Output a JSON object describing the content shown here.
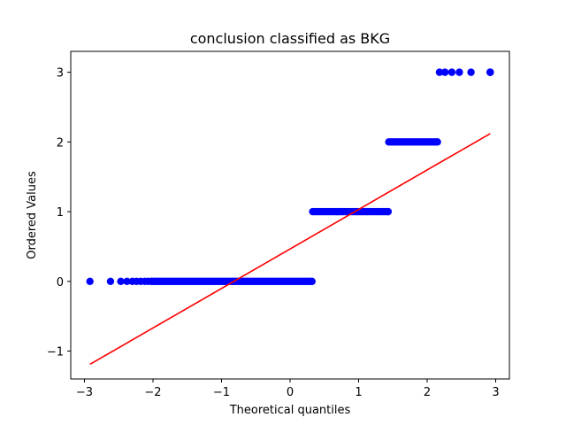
{
  "chart_data": {
    "type": "scatter",
    "title": "conclusion classified as BKG",
    "xlabel": "Theoretical quantiles",
    "ylabel": "Ordered Values",
    "xlim": [
      -3.2,
      3.2
    ],
    "ylim": [
      -1.4,
      3.3
    ],
    "xticks": [
      -3,
      -2,
      -1,
      0,
      1,
      2,
      3
    ],
    "yticks": [
      -1,
      0,
      1,
      2,
      3
    ],
    "grid": false,
    "point_color": "#0000ff",
    "line_color": "#ff0000",
    "groups": [
      {
        "y": 0,
        "x_start": -2.92,
        "x_end": 0.32,
        "sparse_x": [
          -2.92,
          -2.62,
          -2.47,
          -2.38,
          -2.3,
          -2.24,
          -2.18,
          -2.12,
          -2.07,
          -2.02
        ]
      },
      {
        "y": 1,
        "x_start": 0.33,
        "x_end": 1.43,
        "sparse_x": []
      },
      {
        "y": 2,
        "x_start": 1.44,
        "x_end": 2.15,
        "sparse_x": []
      },
      {
        "y": 3,
        "x_start": 2.18,
        "x_end": 2.92,
        "sparse_x": [
          2.18,
          2.26,
          2.36,
          2.47,
          2.64,
          2.92
        ]
      }
    ],
    "fit_line": {
      "x": [
        -2.92,
        2.92
      ],
      "y": [
        -1.19,
        2.12
      ]
    }
  }
}
